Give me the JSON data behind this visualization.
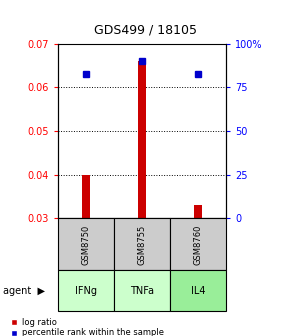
{
  "title": "GDS499 / 18105",
  "samples": [
    "GSM8750",
    "GSM8755",
    "GSM8760"
  ],
  "agents": [
    "IFNg",
    "TNFa",
    "IL4"
  ],
  "x_positions": [
    1,
    2,
    3
  ],
  "log_ratio": [
    0.04,
    0.066,
    0.033
  ],
  "log_ratio_base": 0.03,
  "percentile_rank_scaled": [
    0.063,
    0.066,
    0.063
  ],
  "left_ylim": [
    0.03,
    0.07
  ],
  "left_yticks": [
    0.03,
    0.04,
    0.05,
    0.06,
    0.07
  ],
  "right_yticks": [
    0,
    25,
    50,
    75,
    100
  ],
  "right_ylim": [
    0,
    100
  ],
  "bar_color": "#cc0000",
  "dot_color": "#0000cc",
  "agent_colors": [
    "#ccffcc",
    "#ccffcc",
    "#99ee99"
  ],
  "sample_box_color": "#cccccc",
  "legend_bar_label": "log ratio",
  "legend_dot_label": "percentile rank within the sample",
  "agent_label": "agent",
  "grid_yticks": [
    0.04,
    0.05,
    0.06
  ]
}
